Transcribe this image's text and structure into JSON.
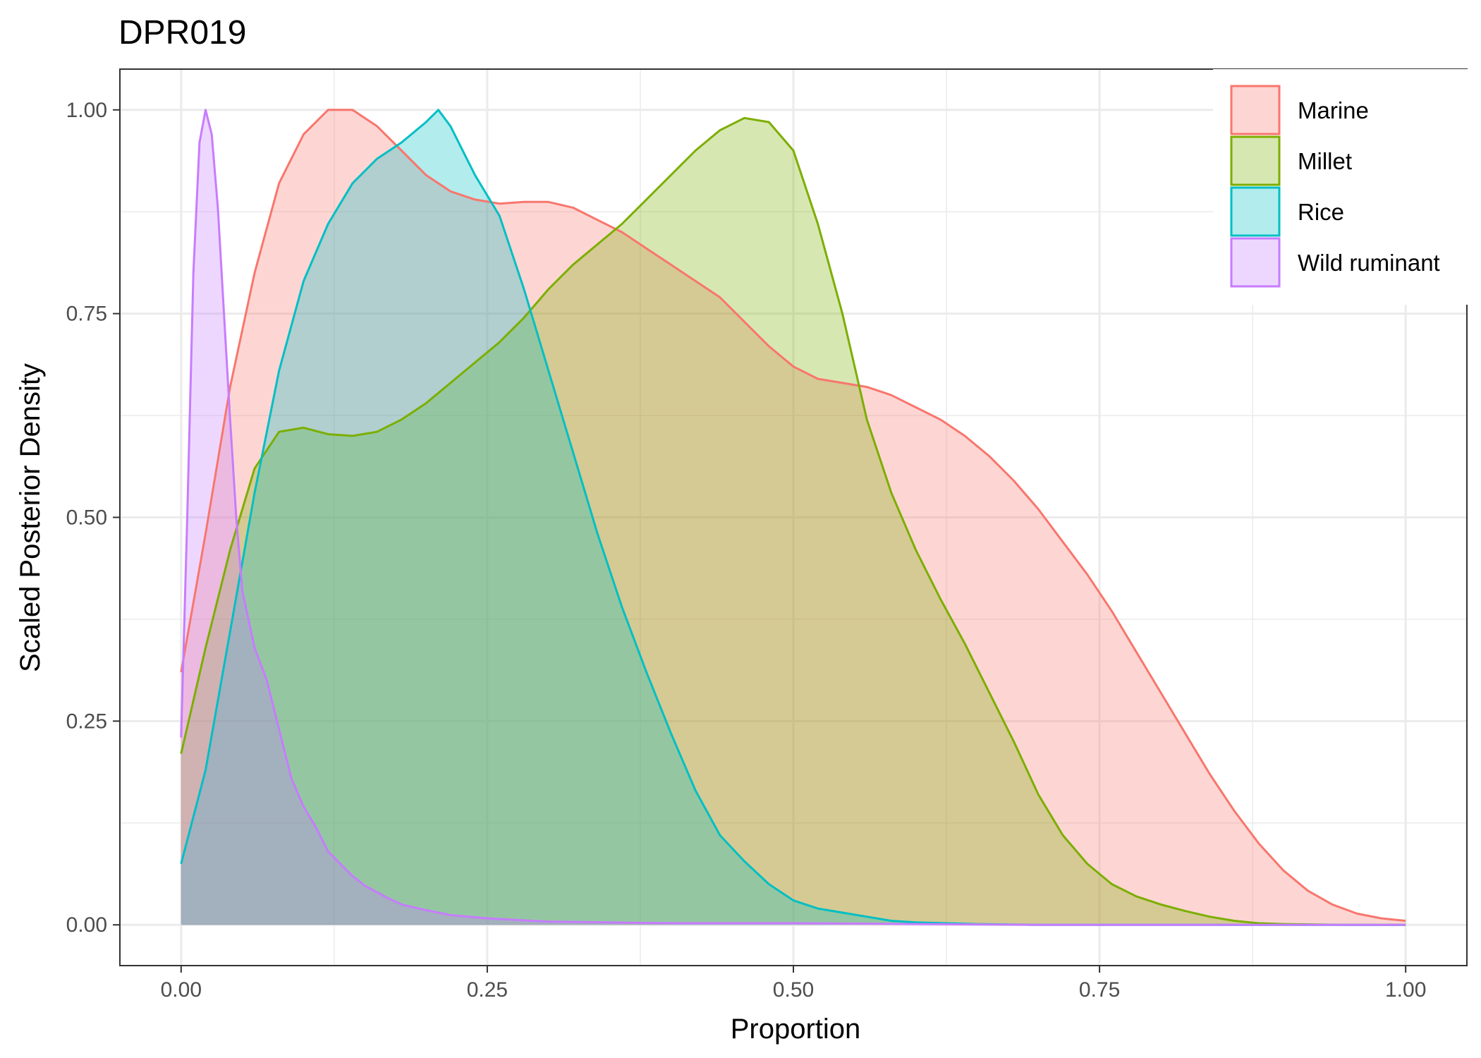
{
  "chart_data": {
    "type": "area",
    "title": "DPR019",
    "xlabel": "Proportion",
    "ylabel": "Scaled Posterior Density",
    "xlim": [
      -0.05,
      1.05
    ],
    "ylim": [
      -0.05,
      1.05
    ],
    "x_ticks": [
      0,
      0.25,
      0.5,
      0.75,
      1
    ],
    "x_tick_labels": [
      "0.00",
      "0.25",
      "0.50",
      "0.75",
      "1.00"
    ],
    "y_ticks": [
      0,
      0.25,
      0.5,
      0.75,
      1
    ],
    "y_tick_labels": [
      "0.00",
      "0.25",
      "0.50",
      "0.75",
      "1.00"
    ],
    "grid": true,
    "legend_position": "top-right",
    "series": [
      {
        "name": "Marine",
        "color": "#F8766D",
        "points": [
          [
            0,
            0.31
          ],
          [
            0.02,
            0.48
          ],
          [
            0.04,
            0.66
          ],
          [
            0.06,
            0.8
          ],
          [
            0.08,
            0.91
          ],
          [
            0.1,
            0.97
          ],
          [
            0.12,
            1.0
          ],
          [
            0.14,
            1.0
          ],
          [
            0.16,
            0.98
          ],
          [
            0.18,
            0.95
          ],
          [
            0.2,
            0.92
          ],
          [
            0.22,
            0.9
          ],
          [
            0.24,
            0.89
          ],
          [
            0.26,
            0.885
          ],
          [
            0.28,
            0.887
          ],
          [
            0.3,
            0.887
          ],
          [
            0.32,
            0.88
          ],
          [
            0.34,
            0.865
          ],
          [
            0.36,
            0.85
          ],
          [
            0.38,
            0.83
          ],
          [
            0.4,
            0.81
          ],
          [
            0.42,
            0.79
          ],
          [
            0.44,
            0.77
          ],
          [
            0.46,
            0.74
          ],
          [
            0.48,
            0.71
          ],
          [
            0.5,
            0.685
          ],
          [
            0.52,
            0.67
          ],
          [
            0.54,
            0.665
          ],
          [
            0.56,
            0.66
          ],
          [
            0.58,
            0.65
          ],
          [
            0.6,
            0.635
          ],
          [
            0.62,
            0.62
          ],
          [
            0.64,
            0.6
          ],
          [
            0.66,
            0.575
          ],
          [
            0.68,
            0.545
          ],
          [
            0.7,
            0.51
          ],
          [
            0.72,
            0.47
          ],
          [
            0.74,
            0.43
          ],
          [
            0.76,
            0.385
          ],
          [
            0.78,
            0.335
          ],
          [
            0.8,
            0.285
          ],
          [
            0.82,
            0.235
          ],
          [
            0.84,
            0.185
          ],
          [
            0.86,
            0.14
          ],
          [
            0.88,
            0.1
          ],
          [
            0.9,
            0.067
          ],
          [
            0.92,
            0.042
          ],
          [
            0.94,
            0.025
          ],
          [
            0.96,
            0.014
          ],
          [
            0.98,
            0.008
          ],
          [
            1.0,
            0.005
          ]
        ]
      },
      {
        "name": "Millet",
        "color": "#7CAE00",
        "points": [
          [
            0,
            0.21
          ],
          [
            0.02,
            0.34
          ],
          [
            0.04,
            0.46
          ],
          [
            0.06,
            0.56
          ],
          [
            0.08,
            0.605
          ],
          [
            0.1,
            0.61
          ],
          [
            0.12,
            0.602
          ],
          [
            0.14,
            0.6
          ],
          [
            0.16,
            0.605
          ],
          [
            0.18,
            0.62
          ],
          [
            0.2,
            0.64
          ],
          [
            0.22,
            0.665
          ],
          [
            0.24,
            0.69
          ],
          [
            0.26,
            0.715
          ],
          [
            0.28,
            0.745
          ],
          [
            0.3,
            0.78
          ],
          [
            0.32,
            0.81
          ],
          [
            0.34,
            0.835
          ],
          [
            0.36,
            0.86
          ],
          [
            0.38,
            0.89
          ],
          [
            0.4,
            0.92
          ],
          [
            0.42,
            0.95
          ],
          [
            0.44,
            0.975
          ],
          [
            0.46,
            0.99
          ],
          [
            0.48,
            0.985
          ],
          [
            0.5,
            0.95
          ],
          [
            0.52,
            0.86
          ],
          [
            0.54,
            0.75
          ],
          [
            0.56,
            0.62
          ],
          [
            0.58,
            0.53
          ],
          [
            0.6,
            0.46
          ],
          [
            0.62,
            0.4
          ],
          [
            0.64,
            0.345
          ],
          [
            0.66,
            0.285
          ],
          [
            0.68,
            0.225
          ],
          [
            0.7,
            0.16
          ],
          [
            0.72,
            0.11
          ],
          [
            0.74,
            0.075
          ],
          [
            0.76,
            0.05
          ],
          [
            0.78,
            0.035
          ],
          [
            0.8,
            0.025
          ],
          [
            0.82,
            0.017
          ],
          [
            0.84,
            0.01
          ],
          [
            0.86,
            0.005
          ],
          [
            0.88,
            0.002
          ],
          [
            0.9,
            0.001
          ],
          [
            0.95,
            0.0
          ],
          [
            1.0,
            0.0
          ]
        ]
      },
      {
        "name": "Rice",
        "color": "#00BFC4",
        "points": [
          [
            0,
            0.075
          ],
          [
            0.02,
            0.19
          ],
          [
            0.04,
            0.36
          ],
          [
            0.06,
            0.53
          ],
          [
            0.08,
            0.68
          ],
          [
            0.1,
            0.79
          ],
          [
            0.12,
            0.86
          ],
          [
            0.14,
            0.91
          ],
          [
            0.16,
            0.94
          ],
          [
            0.18,
            0.96
          ],
          [
            0.2,
            0.985
          ],
          [
            0.21,
            1.0
          ],
          [
            0.22,
            0.98
          ],
          [
            0.24,
            0.92
          ],
          [
            0.26,
            0.87
          ],
          [
            0.28,
            0.78
          ],
          [
            0.3,
            0.68
          ],
          [
            0.32,
            0.58
          ],
          [
            0.34,
            0.48
          ],
          [
            0.36,
            0.39
          ],
          [
            0.38,
            0.31
          ],
          [
            0.4,
            0.235
          ],
          [
            0.42,
            0.165
          ],
          [
            0.44,
            0.11
          ],
          [
            0.46,
            0.078
          ],
          [
            0.48,
            0.05
          ],
          [
            0.5,
            0.03
          ],
          [
            0.52,
            0.02
          ],
          [
            0.54,
            0.015
          ],
          [
            0.56,
            0.01
          ],
          [
            0.58,
            0.005
          ],
          [
            0.6,
            0.003
          ],
          [
            0.65,
            0.001
          ],
          [
            0.7,
            0.0
          ],
          [
            0.8,
            0.0
          ],
          [
            0.9,
            0.0
          ],
          [
            1.0,
            0.0
          ]
        ]
      },
      {
        "name": "Wild ruminant",
        "color": "#C77CFF",
        "points": [
          [
            0,
            0.23
          ],
          [
            0.005,
            0.5
          ],
          [
            0.01,
            0.8
          ],
          [
            0.015,
            0.96
          ],
          [
            0.02,
            1.0
          ],
          [
            0.025,
            0.97
          ],
          [
            0.03,
            0.88
          ],
          [
            0.035,
            0.75
          ],
          [
            0.04,
            0.62
          ],
          [
            0.045,
            0.5
          ],
          [
            0.05,
            0.41
          ],
          [
            0.06,
            0.34
          ],
          [
            0.07,
            0.3
          ],
          [
            0.08,
            0.24
          ],
          [
            0.09,
            0.18
          ],
          [
            0.1,
            0.145
          ],
          [
            0.11,
            0.12
          ],
          [
            0.12,
            0.09
          ],
          [
            0.13,
            0.075
          ],
          [
            0.14,
            0.06
          ],
          [
            0.15,
            0.048
          ],
          [
            0.16,
            0.04
          ],
          [
            0.17,
            0.032
          ],
          [
            0.18,
            0.025
          ],
          [
            0.2,
            0.018
          ],
          [
            0.22,
            0.012
          ],
          [
            0.25,
            0.008
          ],
          [
            0.3,
            0.004
          ],
          [
            0.35,
            0.003
          ],
          [
            0.4,
            0.002
          ],
          [
            0.5,
            0.002
          ],
          [
            0.6,
            0.001
          ],
          [
            0.7,
            0.0
          ],
          [
            0.8,
            0.0
          ],
          [
            1.0,
            0.0
          ]
        ]
      }
    ]
  }
}
